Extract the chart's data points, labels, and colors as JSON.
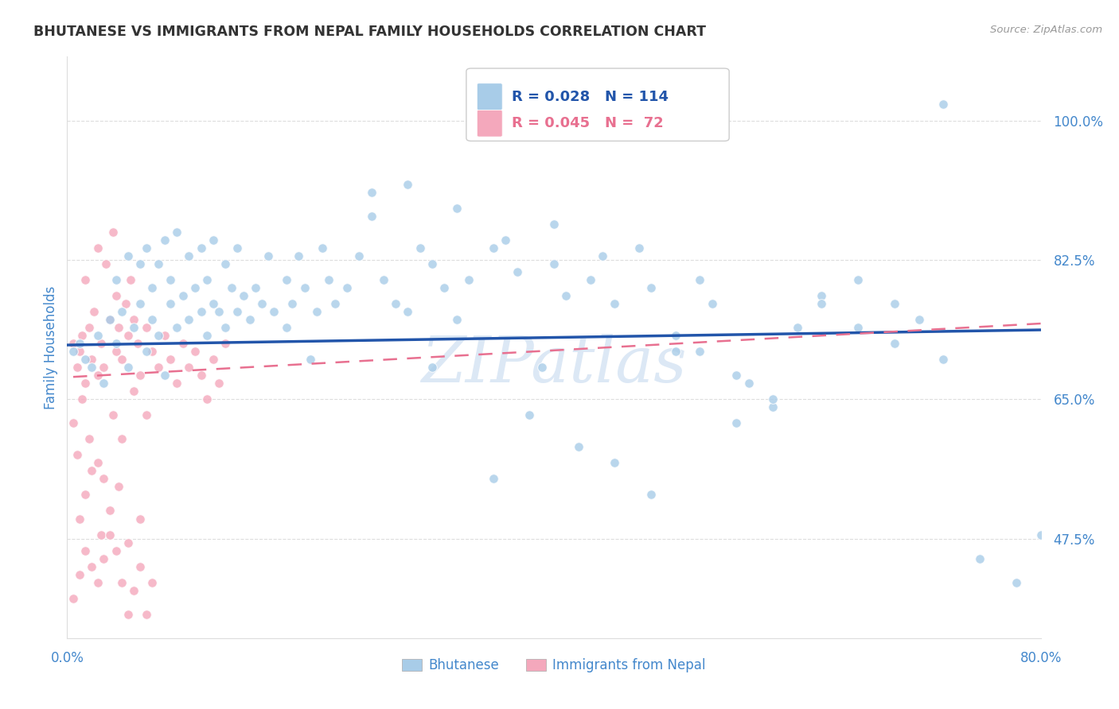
{
  "title": "BHUTANESE VS IMMIGRANTS FROM NEPAL FAMILY HOUSEHOLDS CORRELATION CHART",
  "source": "Source: ZipAtlas.com",
  "ylabel": "Family Households",
  "xlim": [
    0.0,
    0.8
  ],
  "ylim": [
    0.35,
    1.08
  ],
  "yticks": [
    0.475,
    0.65,
    0.825,
    1.0
  ],
  "ytick_labels": [
    "47.5%",
    "65.0%",
    "82.5%",
    "100.0%"
  ],
  "xticks": [
    0.0,
    0.1,
    0.2,
    0.3,
    0.4,
    0.5,
    0.6,
    0.7,
    0.8
  ],
  "xtick_labels": [
    "0.0%",
    "",
    "",
    "",
    "",
    "",
    "",
    "",
    "80.0%"
  ],
  "legend_blue_R": "R = 0.028",
  "legend_blue_N": "N = 114",
  "legend_pink_R": "R = 0.045",
  "legend_pink_N": "N =  72",
  "blue_color": "#a8cce8",
  "pink_color": "#f4a8bc",
  "blue_line_color": "#2255aa",
  "pink_line_color": "#e87090",
  "title_color": "#333333",
  "axis_label_color": "#4488cc",
  "tick_color": "#4488cc",
  "watermark_color": "#dce8f5",
  "background_color": "#ffffff",
  "blue_scatter_x": [
    0.005,
    0.01,
    0.015,
    0.02,
    0.025,
    0.03,
    0.035,
    0.04,
    0.04,
    0.045,
    0.05,
    0.05,
    0.055,
    0.06,
    0.06,
    0.065,
    0.065,
    0.07,
    0.07,
    0.075,
    0.075,
    0.08,
    0.08,
    0.085,
    0.085,
    0.09,
    0.09,
    0.095,
    0.1,
    0.1,
    0.105,
    0.11,
    0.11,
    0.115,
    0.115,
    0.12,
    0.12,
    0.125,
    0.13,
    0.13,
    0.135,
    0.14,
    0.14,
    0.145,
    0.15,
    0.155,
    0.16,
    0.165,
    0.17,
    0.18,
    0.18,
    0.185,
    0.19,
    0.195,
    0.2,
    0.205,
    0.21,
    0.215,
    0.22,
    0.23,
    0.24,
    0.25,
    0.26,
    0.27,
    0.28,
    0.29,
    0.3,
    0.31,
    0.32,
    0.33,
    0.35,
    0.37,
    0.39,
    0.4,
    0.41,
    0.43,
    0.44,
    0.45,
    0.47,
    0.48,
    0.5,
    0.5,
    0.52,
    0.53,
    0.55,
    0.56,
    0.58,
    0.6,
    0.62,
    0.65,
    0.68,
    0.7,
    0.72,
    0.3,
    0.35,
    0.38,
    0.42,
    0.45,
    0.48,
    0.52,
    0.55,
    0.58,
    0.62,
    0.65,
    0.68,
    0.72,
    0.75,
    0.78,
    0.8,
    0.25,
    0.28,
    0.32,
    0.36,
    0.4
  ],
  "blue_scatter_y": [
    0.71,
    0.72,
    0.7,
    0.69,
    0.73,
    0.67,
    0.75,
    0.72,
    0.8,
    0.76,
    0.69,
    0.83,
    0.74,
    0.77,
    0.82,
    0.71,
    0.84,
    0.75,
    0.79,
    0.73,
    0.82,
    0.68,
    0.85,
    0.77,
    0.8,
    0.74,
    0.86,
    0.78,
    0.75,
    0.83,
    0.79,
    0.76,
    0.84,
    0.73,
    0.8,
    0.77,
    0.85,
    0.76,
    0.74,
    0.82,
    0.79,
    0.76,
    0.84,
    0.78,
    0.75,
    0.79,
    0.77,
    0.83,
    0.76,
    0.74,
    0.8,
    0.77,
    0.83,
    0.79,
    0.7,
    0.76,
    0.84,
    0.8,
    0.77,
    0.79,
    0.83,
    0.91,
    0.8,
    0.77,
    0.76,
    0.84,
    0.82,
    0.79,
    0.75,
    0.8,
    0.84,
    0.81,
    0.69,
    0.82,
    0.78,
    0.8,
    0.83,
    0.77,
    0.84,
    0.79,
    0.73,
    0.71,
    0.8,
    0.77,
    0.62,
    0.67,
    0.64,
    0.74,
    0.78,
    0.8,
    0.77,
    0.75,
    1.02,
    0.69,
    0.55,
    0.63,
    0.59,
    0.57,
    0.53,
    0.71,
    0.68,
    0.65,
    0.77,
    0.74,
    0.72,
    0.7,
    0.45,
    0.42,
    0.48,
    0.88,
    0.92,
    0.89,
    0.85,
    0.87
  ],
  "pink_scatter_x": [
    0.005,
    0.008,
    0.01,
    0.012,
    0.015,
    0.015,
    0.018,
    0.02,
    0.022,
    0.025,
    0.025,
    0.028,
    0.03,
    0.032,
    0.035,
    0.038,
    0.04,
    0.04,
    0.042,
    0.045,
    0.048,
    0.05,
    0.052,
    0.055,
    0.058,
    0.06,
    0.065,
    0.07,
    0.075,
    0.08,
    0.085,
    0.09,
    0.095,
    0.1,
    0.105,
    0.11,
    0.115,
    0.12,
    0.125,
    0.13,
    0.005,
    0.008,
    0.012,
    0.018,
    0.025,
    0.03,
    0.038,
    0.045,
    0.055,
    0.065,
    0.01,
    0.015,
    0.02,
    0.028,
    0.035,
    0.042,
    0.05,
    0.06,
    0.005,
    0.01,
    0.015,
    0.02,
    0.025,
    0.03,
    0.035,
    0.04,
    0.045,
    0.05,
    0.055,
    0.06,
    0.065,
    0.07
  ],
  "pink_scatter_y": [
    0.72,
    0.69,
    0.71,
    0.73,
    0.67,
    0.8,
    0.74,
    0.7,
    0.76,
    0.68,
    0.84,
    0.72,
    0.69,
    0.82,
    0.75,
    0.86,
    0.71,
    0.78,
    0.74,
    0.7,
    0.77,
    0.73,
    0.8,
    0.75,
    0.72,
    0.68,
    0.74,
    0.71,
    0.69,
    0.73,
    0.7,
    0.67,
    0.72,
    0.69,
    0.71,
    0.68,
    0.65,
    0.7,
    0.67,
    0.72,
    0.62,
    0.58,
    0.65,
    0.6,
    0.57,
    0.55,
    0.63,
    0.6,
    0.66,
    0.63,
    0.5,
    0.53,
    0.56,
    0.48,
    0.51,
    0.54,
    0.47,
    0.5,
    0.4,
    0.43,
    0.46,
    0.44,
    0.42,
    0.45,
    0.48,
    0.46,
    0.42,
    0.38,
    0.41,
    0.44,
    0.38,
    0.42
  ],
  "blue_line_x": [
    0.0,
    0.8
  ],
  "blue_line_y": [
    0.718,
    0.737
  ],
  "pink_line_x": [
    0.005,
    0.8
  ],
  "pink_line_y": [
    0.678,
    0.745
  ],
  "scatter_size": 70,
  "scatter_alpha": 0.8
}
